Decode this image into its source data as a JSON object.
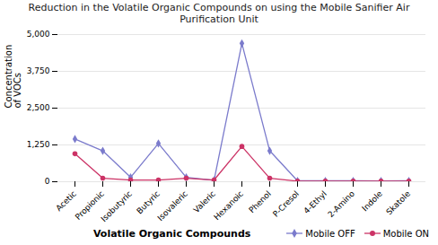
{
  "chart_data": {
    "type": "line",
    "title": "Reduction in the Volatile Organic Compounds on using the Mobile Sanifier Air Purification Unit",
    "xlabel": "Volatile Organic Compounds",
    "ylabel": "Concentration\nof VOCs",
    "categories": [
      "Acetic",
      "Propionic",
      "Isobutyric",
      "Butyric",
      "Isovaleric",
      "Valeric",
      "Hexanoic",
      "Phenol",
      "P-Cresol",
      "4-Ethyl",
      "2-Amino",
      "Indole",
      "Skatole"
    ],
    "series": [
      {
        "name": "Mobile OFF",
        "color": "#7b7bcc",
        "marker": "diamond",
        "values": [
          1450,
          1050,
          150,
          1300,
          150,
          50,
          4700,
          1050,
          30,
          30,
          30,
          25,
          30
        ]
      },
      {
        "name": "Mobile ON",
        "color": "#cc3366",
        "marker": "circle",
        "values": [
          950,
          120,
          60,
          60,
          120,
          60,
          1200,
          120,
          20,
          20,
          20,
          20,
          20
        ]
      }
    ],
    "ylim": [
      0,
      5000
    ],
    "yticks": [
      0,
      1250,
      2500,
      3750,
      5000
    ],
    "grid": true,
    "legend": "lower right"
  }
}
